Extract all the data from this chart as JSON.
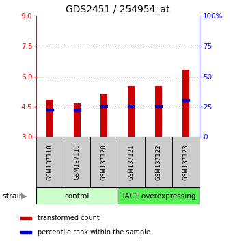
{
  "title": "GDS2451 / 254954_at",
  "samples": [
    "GSM137118",
    "GSM137119",
    "GSM137120",
    "GSM137121",
    "GSM137122",
    "GSM137123"
  ],
  "bar_tops": [
    4.82,
    4.65,
    5.12,
    5.52,
    5.5,
    6.32
  ],
  "bar_bottom": 3.0,
  "blue_marks": [
    4.35,
    4.32,
    4.5,
    4.5,
    4.5,
    4.82
  ],
  "left_ylim": [
    3,
    9
  ],
  "left_yticks": [
    3,
    4.5,
    6,
    7.5,
    9
  ],
  "right_ylim": [
    0,
    100
  ],
  "right_yticks": [
    0,
    25,
    50,
    75,
    100
  ],
  "right_yticklabels": [
    "0",
    "25",
    "50",
    "75",
    "100%"
  ],
  "dotted_lines": [
    4.5,
    6.0,
    7.5
  ],
  "bar_color": "#cc0000",
  "blue_color": "#0000cc",
  "groups": [
    {
      "label": "control",
      "start": 0,
      "end": 3,
      "color": "#ccffcc"
    },
    {
      "label": "TAC1 overexpressing",
      "start": 3,
      "end": 6,
      "color": "#55ee55"
    }
  ],
  "sample_box_color": "#cccccc",
  "legend_items": [
    {
      "color": "#cc0000",
      "label": "transformed count"
    },
    {
      "color": "#0000cc",
      "label": "percentile rank within the sample"
    }
  ],
  "bar_width": 0.25,
  "title_fontsize": 10,
  "tick_fontsize": 7.5,
  "sample_fontsize": 6.2,
  "group_fontsize": 7.5,
  "legend_fontsize": 7,
  "strain_fontsize": 8
}
